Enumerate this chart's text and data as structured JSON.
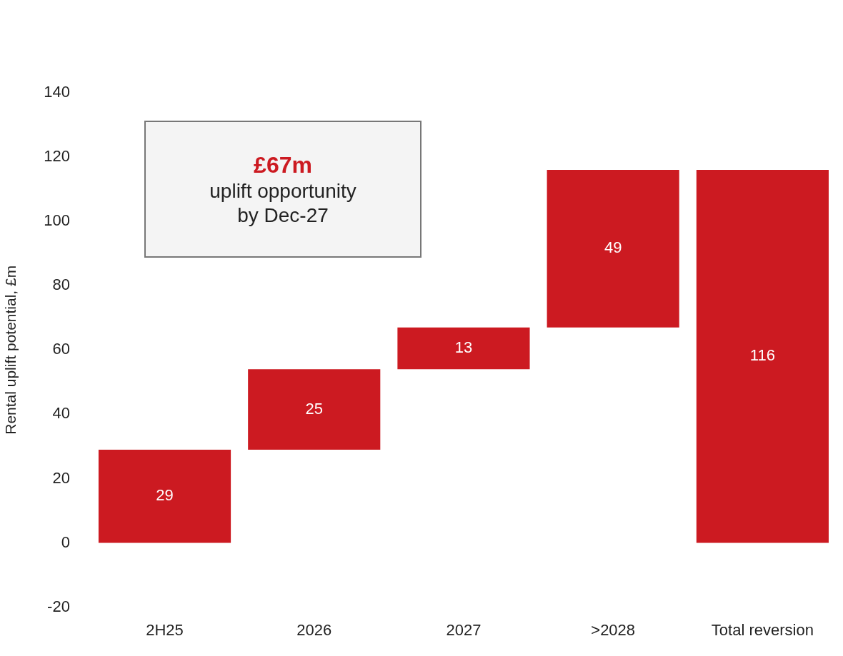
{
  "chart_data": {
    "type": "bar",
    "categories": [
      "2H25",
      "2026",
      "2027",
      ">2028",
      "Total reversion"
    ],
    "values": [
      29,
      25,
      13,
      49,
      116
    ],
    "base": [
      0,
      29,
      54,
      67,
      0
    ],
    "color": "#cc1a21",
    "ylabel": "Rental uplift potential, £m",
    "ylim": [
      -20,
      140
    ],
    "yticks": [
      -20,
      0,
      20,
      40,
      60,
      80,
      100,
      120,
      140
    ],
    "grid": false,
    "legend": false,
    "data_labels": true,
    "annotations": [
      "£67m",
      "uplift opportunity",
      "by Dec-27"
    ]
  }
}
